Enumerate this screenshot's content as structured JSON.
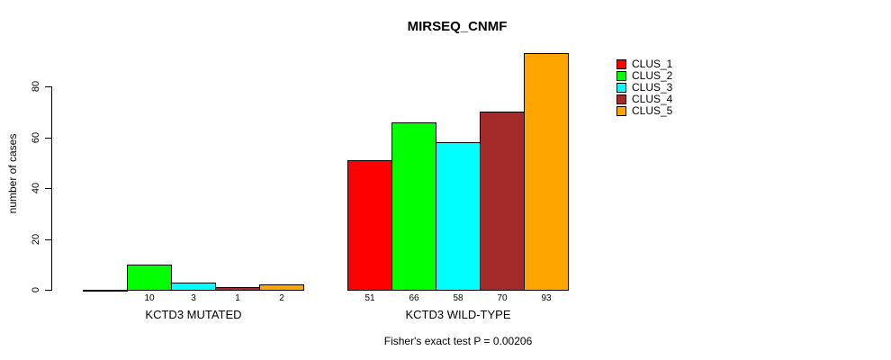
{
  "chart_data": {
    "type": "bar",
    "title": "MIRSEQ_CNMF",
    "ylabel": "number of cases",
    "xlabel": "",
    "ylim": [
      0,
      93
    ],
    "yticks": [
      0,
      20,
      40,
      60,
      80
    ],
    "grid": false,
    "legend_position": "right",
    "clusters": [
      {
        "name": "CLUS_1",
        "color": "#FF0000"
      },
      {
        "name": "CLUS_2",
        "color": "#00FF00"
      },
      {
        "name": "CLUS_3",
        "color": "#00FFFF"
      },
      {
        "name": "CLUS_4",
        "color": "#A52A2A"
      },
      {
        "name": "CLUS_5",
        "color": "#FFA500"
      }
    ],
    "groups": [
      {
        "label": "KCTD3 MUTATED",
        "values": [
          0,
          10,
          3,
          1,
          2
        ],
        "value_labels": [
          "",
          "10",
          "3",
          "1",
          "2"
        ]
      },
      {
        "label": "KCTD3 WILD-TYPE",
        "values": [
          51,
          66,
          58,
          70,
          93
        ],
        "value_labels": [
          "51",
          "66",
          "58",
          "70",
          "93"
        ]
      }
    ],
    "footnote": "Fisher's exact test P = 0.00206"
  }
}
